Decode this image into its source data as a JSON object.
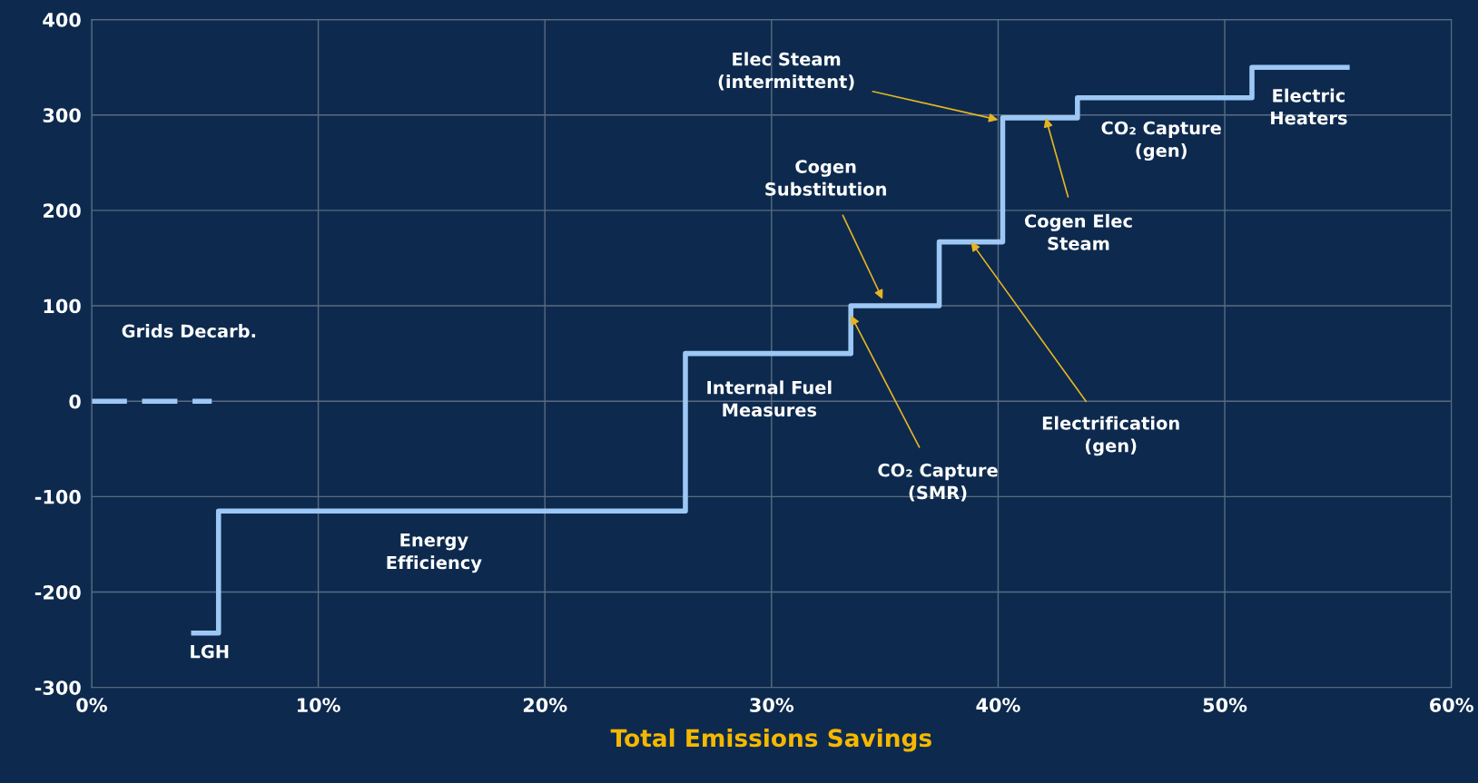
{
  "chart_data": {
    "type": "step",
    "xlabel": "Total Emissions Savings",
    "xlim": [
      0,
      60
    ],
    "xticks": [
      {
        "value": 0,
        "label": "0%"
      },
      {
        "value": 10,
        "label": "10%"
      },
      {
        "value": 20,
        "label": "20%"
      },
      {
        "value": 30,
        "label": "30%"
      },
      {
        "value": 40,
        "label": "40%"
      },
      {
        "value": 50,
        "label": "50%"
      },
      {
        "value": 60,
        "label": "60%"
      }
    ],
    "ylim": [
      -300,
      400
    ],
    "yticks": [
      -300,
      -200,
      -100,
      0,
      100,
      200,
      300,
      400
    ],
    "grid": true,
    "legend": false,
    "series": [
      {
        "color": "#9dc8f5",
        "line_style": "dashed",
        "x": [
          0,
          5.3
        ],
        "values": [
          0,
          0
        ]
      },
      {
        "color": "#9dc8f5",
        "line_style": "solid",
        "x": [
          4.5,
          5.6,
          26.2,
          33.5,
          37.4,
          40.2,
          43.5,
          51.2,
          55.4
        ],
        "values": [
          -243,
          -115,
          50,
          100,
          167,
          297,
          318,
          350,
          350
        ]
      }
    ],
    "annotations": [
      "Grids Decarb.",
      "LGH",
      "Energy\nEfficiency",
      "Internal Fuel\nMeasures",
      {
        "text": "CO₂ Capture\n(SMR)",
        "x": 33.5,
        "y": 90
      },
      {
        "text": "Cogen\nSubstitution",
        "x": 34.9,
        "y": 107
      },
      {
        "text": "Electrification\n(gen)",
        "x": 38.8,
        "y": 167
      },
      {
        "text": "Cogen Elec\nSteam",
        "x": 42.1,
        "y": 297
      },
      {
        "text": "Elec Steam\n(intermittent)",
        "x": 40.0,
        "y": 295
      },
      "CO₂ Capture\n(gen)",
      "Electric\nHeaters"
    ]
  }
}
